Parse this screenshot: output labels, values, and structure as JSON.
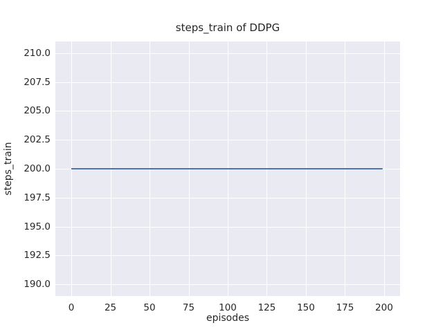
{
  "figure": {
    "title": "steps_train of DDPG",
    "xlabel": "episodes",
    "ylabel": "steps_train"
  },
  "chart_data": {
    "type": "line",
    "title": "steps_train of DDPG",
    "xlabel": "episodes",
    "ylabel": "steps_train",
    "xlim": [
      -10.2,
      210.2
    ],
    "ylim": [
      189.0,
      211.0
    ],
    "xtick_values": [
      0,
      25,
      50,
      75,
      100,
      125,
      150,
      175,
      200
    ],
    "xtick_labels": [
      "0",
      "25",
      "50",
      "75",
      "100",
      "125",
      "150",
      "175",
      "200"
    ],
    "ytick_values": [
      190.0,
      192.5,
      195.0,
      197.5,
      200.0,
      202.5,
      205.0,
      207.5,
      210.0
    ],
    "ytick_labels": [
      "190.0",
      "192.5",
      "195.0",
      "197.5",
      "200.0",
      "202.5",
      "205.0",
      "207.5",
      "210.0"
    ],
    "grid": true,
    "legend": false,
    "series": [
      {
        "name": "steps_train",
        "x": [
          0,
          199
        ],
        "y": [
          200,
          200
        ],
        "color": "#4C72B0",
        "line_width": 2
      }
    ],
    "colors": {
      "figure_background": "#FFFFFF",
      "plot_background": "#EAEAF2",
      "gridline": "#FFFFFF",
      "text": "#262626"
    }
  }
}
